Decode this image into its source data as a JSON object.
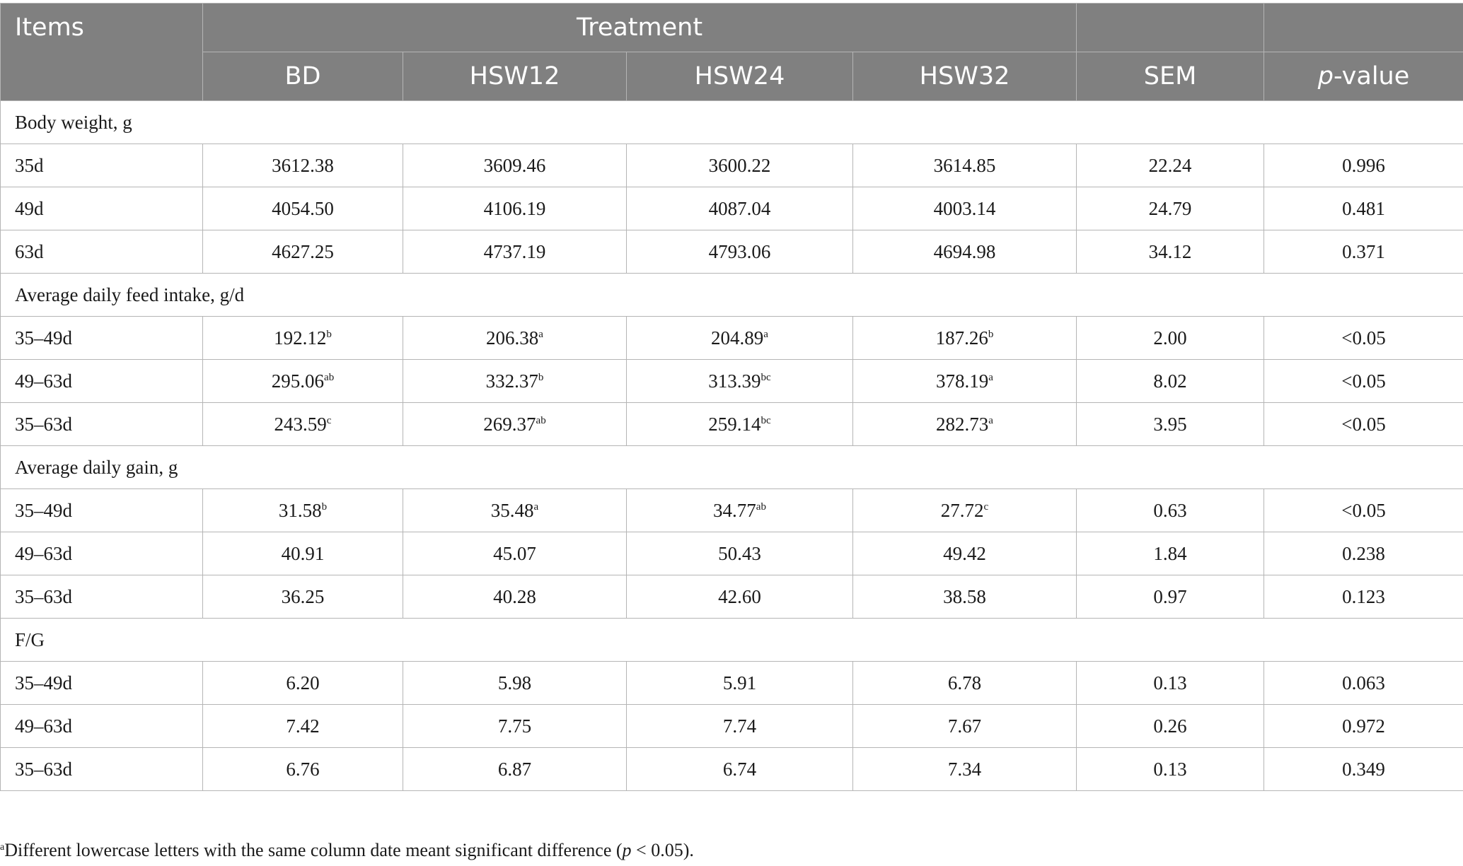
{
  "header": {
    "items": "Items",
    "treatment": "Treatment",
    "columns": [
      "BD",
      "HSW12",
      "HSW24",
      "HSW32"
    ],
    "sem": "SEM",
    "p_italic": "p",
    "p_rest": "-value"
  },
  "sections": [
    {
      "title": "Body weight, g",
      "rows": [
        {
          "label": "35d",
          "cells": [
            {
              "v": "3612.38",
              "s": ""
            },
            {
              "v": "3609.46",
              "s": ""
            },
            {
              "v": "3600.22",
              "s": ""
            },
            {
              "v": "3614.85",
              "s": ""
            }
          ],
          "sem": "22.24",
          "p": "0.996"
        },
        {
          "label": "49d",
          "cells": [
            {
              "v": "4054.50",
              "s": ""
            },
            {
              "v": "4106.19",
              "s": ""
            },
            {
              "v": "4087.04",
              "s": ""
            },
            {
              "v": "4003.14",
              "s": ""
            }
          ],
          "sem": "24.79",
          "p": "0.481"
        },
        {
          "label": "63d",
          "cells": [
            {
              "v": "4627.25",
              "s": ""
            },
            {
              "v": "4737.19",
              "s": ""
            },
            {
              "v": "4793.06",
              "s": ""
            },
            {
              "v": "4694.98",
              "s": ""
            }
          ],
          "sem": "34.12",
          "p": "0.371"
        }
      ]
    },
    {
      "title": "Average daily feed intake, g/d",
      "rows": [
        {
          "label": "35–49d",
          "cells": [
            {
              "v": "192.12",
              "s": "b"
            },
            {
              "v": "206.38",
              "s": "a"
            },
            {
              "v": "204.89",
              "s": "a"
            },
            {
              "v": "187.26",
              "s": "b"
            }
          ],
          "sem": "2.00",
          "p": "<0.05"
        },
        {
          "label": "49–63d",
          "cells": [
            {
              "v": "295.06",
              "s": "ab"
            },
            {
              "v": "332.37",
              "s": "b"
            },
            {
              "v": "313.39",
              "s": "bc"
            },
            {
              "v": "378.19",
              "s": "a"
            }
          ],
          "sem": "8.02",
          "p": "<0.05"
        },
        {
          "label": "35–63d",
          "cells": [
            {
              "v": "243.59",
              "s": "c"
            },
            {
              "v": "269.37",
              "s": "ab"
            },
            {
              "v": "259.14",
              "s": "bc"
            },
            {
              "v": "282.73",
              "s": "a"
            }
          ],
          "sem": "3.95",
          "p": "<0.05"
        }
      ]
    },
    {
      "title": "Average daily gain, g",
      "rows": [
        {
          "label": "35–49d",
          "cells": [
            {
              "v": "31.58",
              "s": "b"
            },
            {
              "v": "35.48",
              "s": "a"
            },
            {
              "v": "34.77",
              "s": "ab"
            },
            {
              "v": "27.72",
              "s": "c"
            }
          ],
          "sem": "0.63",
          "p": "<0.05"
        },
        {
          "label": "49–63d",
          "cells": [
            {
              "v": "40.91",
              "s": ""
            },
            {
              "v": "45.07",
              "s": ""
            },
            {
              "v": "50.43",
              "s": ""
            },
            {
              "v": "49.42",
              "s": ""
            }
          ],
          "sem": "1.84",
          "p": "0.238"
        },
        {
          "label": "35–63d",
          "cells": [
            {
              "v": "36.25",
              "s": ""
            },
            {
              "v": "40.28",
              "s": ""
            },
            {
              "v": "42.60",
              "s": ""
            },
            {
              "v": "38.58",
              "s": ""
            }
          ],
          "sem": "0.97",
          "p": "0.123"
        }
      ]
    },
    {
      "title": "F/G",
      "rows": [
        {
          "label": "35–49d",
          "cells": [
            {
              "v": "6.20",
              "s": ""
            },
            {
              "v": "5.98",
              "s": ""
            },
            {
              "v": "5.91",
              "s": ""
            },
            {
              "v": "6.78",
              "s": ""
            }
          ],
          "sem": "0.13",
          "p": "0.063"
        },
        {
          "label": "49–63d",
          "cells": [
            {
              "v": "7.42",
              "s": ""
            },
            {
              "v": "7.75",
              "s": ""
            },
            {
              "v": "7.74",
              "s": ""
            },
            {
              "v": "7.67",
              "s": ""
            }
          ],
          "sem": "0.26",
          "p": "0.972"
        },
        {
          "label": "35–63d",
          "cells": [
            {
              "v": "6.76",
              "s": ""
            },
            {
              "v": "6.87",
              "s": ""
            },
            {
              "v": "6.74",
              "s": ""
            },
            {
              "v": "7.34",
              "s": ""
            }
          ],
          "sem": "0.13",
          "p": "0.349"
        }
      ]
    }
  ],
  "footnote": {
    "marker": "a",
    "text_before": "Different lowercase letters with the same column date meant significant difference (",
    "p_italic": "p",
    "text_after": " < 0.05)."
  }
}
